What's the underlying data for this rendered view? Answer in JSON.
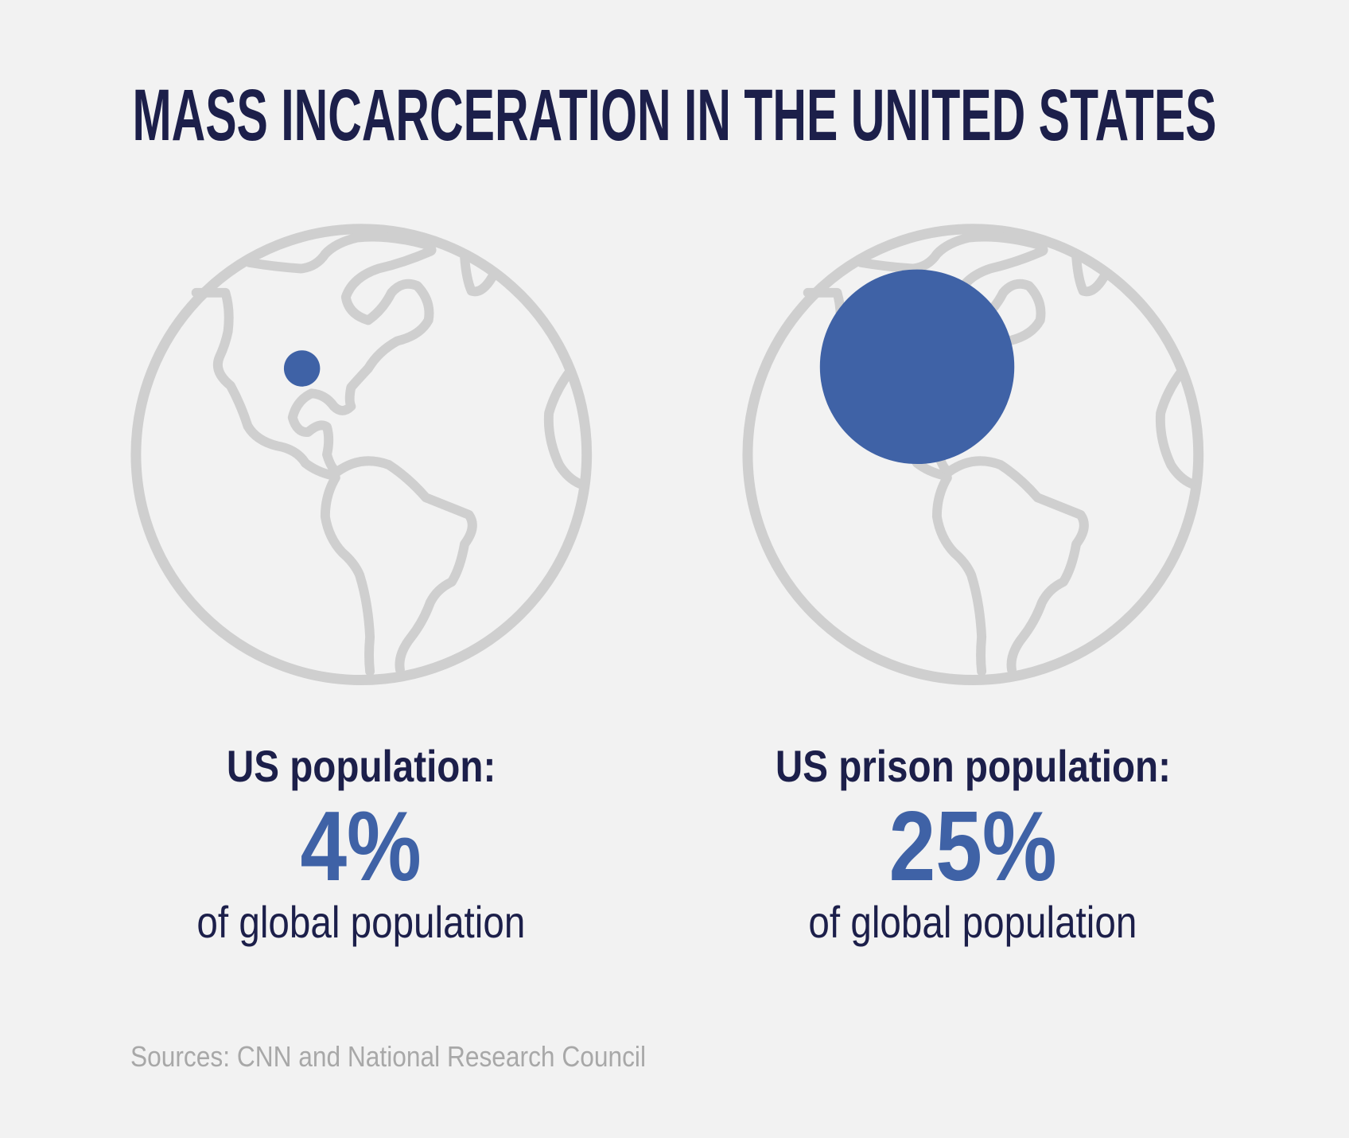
{
  "title": "MASS INCARCERATION IN THE UNITED STATES",
  "colors": {
    "background": "#f2f2f2",
    "navy": "#1c1f4a",
    "blue": "#3f62a6",
    "globe": "#cfcfcf",
    "source": "#a8a8a8"
  },
  "chart_data": {
    "type": "proportional-symbol",
    "title": "MASS INCARCERATION IN THE UNITED STATES",
    "items": [
      {
        "label": "US population:",
        "value": 4,
        "value_text": "4%",
        "sub": "of global population"
      },
      {
        "label": "US prison population:",
        "value": 25,
        "value_text": "25%",
        "sub": "of global population"
      }
    ]
  },
  "source": "Sources: CNN and National Research Council"
}
